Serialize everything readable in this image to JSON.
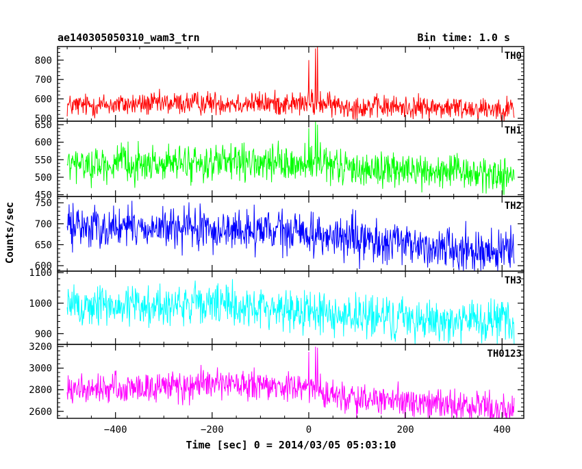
{
  "chart_data": {
    "type": "line",
    "title_left": "ae140305050310_wam3_trn",
    "title_right": "Bin time: 1.0 s",
    "xlabel": "Time [sec] 0 = 2014/03/05 05:03:10",
    "ylabel": "Counts/sec",
    "x_range": [
      -500,
      425
    ],
    "xlim": [
      -520,
      445
    ],
    "x_ticks": [
      -400,
      -200,
      0,
      200,
      400
    ],
    "x_tick_labels": [
      "−400",
      "−200",
      "0",
      "200",
      "400"
    ],
    "panels": [
      {
        "name": "TH0",
        "color": "#ff0000",
        "ylim": [
          485,
          870
        ],
        "y_ticks": [
          500,
          600,
          700,
          800
        ],
        "y_tick_labels": [
          "500",
          "600",
          "700",
          "800"
        ],
        "baseline": [
          [
            -500,
            565
          ],
          [
            -200,
            580
          ],
          [
            0,
            575
          ],
          [
            100,
            560
          ],
          [
            425,
            550
          ]
        ],
        "noise": 30,
        "spikes": [
          [
            0,
            800
          ],
          [
            6,
            650
          ],
          [
            14,
            860
          ],
          [
            18,
            870
          ],
          [
            24,
            640
          ],
          [
            30,
            600
          ]
        ]
      },
      {
        "name": "TH1",
        "color": "#00ff00",
        "ylim": [
          445,
          660
        ],
        "y_ticks": [
          450,
          500,
          550,
          600,
          650
        ],
        "y_tick_labels": [
          "450",
          "500",
          "550",
          "600",
          "650"
        ],
        "baseline": [
          [
            -500,
            535
          ],
          [
            -200,
            540
          ],
          [
            0,
            535
          ],
          [
            100,
            525
          ],
          [
            425,
            505
          ]
        ],
        "noise": 25,
        "spikes": [
          [
            0,
            640
          ],
          [
            14,
            660
          ],
          [
            18,
            650
          ],
          [
            24,
            600
          ]
        ]
      },
      {
        "name": "TH2",
        "color": "#0000ff",
        "ylim": [
          587,
          765
        ],
        "y_ticks": [
          600,
          650,
          700,
          750
        ],
        "y_tick_labels": [
          "600",
          "650",
          "700",
          "750"
        ],
        "baseline": [
          [
            -500,
            695
          ],
          [
            -200,
            685
          ],
          [
            0,
            678
          ],
          [
            100,
            660
          ],
          [
            425,
            630
          ]
        ],
        "noise": 25,
        "spikes": []
      },
      {
        "name": "TH3",
        "color": "#00ffff",
        "ylim": [
          865,
          1105
        ],
        "y_ticks": [
          900,
          1000,
          1100
        ],
        "y_tick_labels": [
          "900",
          "1000",
          "1100"
        ],
        "baseline": [
          [
            -500,
            990
          ],
          [
            -200,
            995
          ],
          [
            0,
            975
          ],
          [
            100,
            955
          ],
          [
            425,
            935
          ]
        ],
        "noise": 35,
        "spikes": []
      },
      {
        "name": "TH0123",
        "color": "#ff00ff",
        "ylim": [
          2535,
          3220
        ],
        "y_ticks": [
          2600,
          2800,
          3000,
          3200
        ],
        "y_tick_labels": [
          "2600",
          "2800",
          "3000",
          "3200"
        ],
        "baseline": [
          [
            -500,
            2790
          ],
          [
            -200,
            2850
          ],
          [
            0,
            2810
          ],
          [
            100,
            2710
          ],
          [
            425,
            2620
          ]
        ],
        "noise": 70,
        "spikes": [
          [
            0,
            3150
          ],
          [
            6,
            2900
          ],
          [
            14,
            3200
          ],
          [
            18,
            3190
          ],
          [
            24,
            2950
          ]
        ]
      }
    ]
  }
}
